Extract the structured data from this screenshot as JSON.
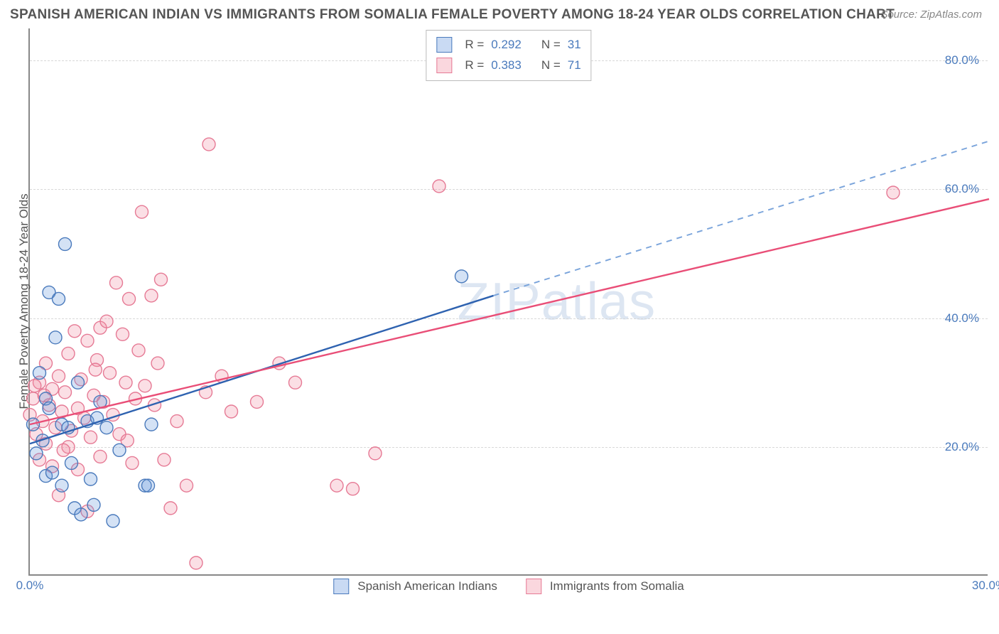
{
  "title": "SPANISH AMERICAN INDIAN VS IMMIGRANTS FROM SOMALIA FEMALE POVERTY AMONG 18-24 YEAR OLDS CORRELATION CHART",
  "source": "Source: ZipAtlas.com",
  "watermark": "ZIPatlas",
  "y_axis_title": "Female Poverty Among 18-24 Year Olds",
  "chart": {
    "type": "scatter",
    "xlim": [
      0,
      30
    ],
    "ylim": [
      0,
      85
    ],
    "x_ticks": [
      0,
      30
    ],
    "x_tick_labels": [
      "0.0%",
      "30.0%"
    ],
    "y_ticks": [
      20,
      40,
      60,
      80
    ],
    "y_tick_labels": [
      "20.0%",
      "40.0%",
      "60.0%",
      "80.0%"
    ],
    "grid_color": "#d8d8d8",
    "background_color": "#ffffff",
    "series": [
      {
        "name": "Spanish American Indians",
        "color_stroke": "#4a7abc",
        "color_fill": "rgba(100,150,220,0.28)",
        "marker_radius": 9,
        "R": "0.292",
        "N": "31",
        "trend": {
          "x1": 0,
          "y1": 20.5,
          "x2": 14.5,
          "y2": 43.5,
          "x2_dash": 30,
          "y2_dash": 67.5,
          "solid_color": "#2e62b0",
          "dash_color": "#7aa4db",
          "width": 2.4
        },
        "points": [
          [
            0.1,
            23.5
          ],
          [
            0.2,
            19.0
          ],
          [
            0.3,
            31.5
          ],
          [
            0.4,
            21.0
          ],
          [
            0.5,
            27.5
          ],
          [
            0.5,
            15.5
          ],
          [
            0.6,
            44.0
          ],
          [
            0.7,
            16.0
          ],
          [
            0.8,
            37.0
          ],
          [
            0.9,
            43.0
          ],
          [
            1.0,
            23.5
          ],
          [
            1.0,
            14.0
          ],
          [
            1.1,
            51.5
          ],
          [
            1.2,
            23.0
          ],
          [
            1.3,
            17.5
          ],
          [
            1.4,
            10.5
          ],
          [
            1.5,
            30.0
          ],
          [
            1.6,
            9.5
          ],
          [
            1.8,
            24.0
          ],
          [
            1.9,
            15.0
          ],
          [
            2.0,
            11.0
          ],
          [
            2.1,
            24.5
          ],
          [
            2.2,
            27.0
          ],
          [
            2.4,
            23.0
          ],
          [
            2.6,
            8.5
          ],
          [
            2.8,
            19.5
          ],
          [
            3.6,
            14.0
          ],
          [
            3.7,
            14.0
          ],
          [
            3.8,
            23.5
          ],
          [
            13.5,
            46.5
          ],
          [
            0.6,
            26.0
          ]
        ]
      },
      {
        "name": "Immigrants from Somalia",
        "color_stroke": "#e67a95",
        "color_fill": "rgba(240,140,160,0.28)",
        "marker_radius": 9,
        "R": "0.383",
        "N": "71",
        "trend": {
          "x1": 0,
          "y1": 23.5,
          "x2": 30,
          "y2": 58.5,
          "solid_color": "#e94e77",
          "width": 2.4
        },
        "points": [
          [
            0.0,
            25.0
          ],
          [
            0.1,
            27.5
          ],
          [
            0.2,
            22.0
          ],
          [
            0.3,
            30.0
          ],
          [
            0.3,
            18.0
          ],
          [
            0.4,
            24.0
          ],
          [
            0.5,
            33.0
          ],
          [
            0.5,
            20.5
          ],
          [
            0.6,
            26.5
          ],
          [
            0.7,
            29.0
          ],
          [
            0.7,
            17.0
          ],
          [
            0.8,
            23.0
          ],
          [
            0.9,
            31.0
          ],
          [
            0.9,
            12.5
          ],
          [
            1.0,
            25.5
          ],
          [
            1.1,
            28.5
          ],
          [
            1.2,
            34.5
          ],
          [
            1.2,
            20.0
          ],
          [
            1.3,
            22.5
          ],
          [
            1.4,
            38.0
          ],
          [
            1.5,
            26.0
          ],
          [
            1.5,
            16.5
          ],
          [
            1.6,
            30.5
          ],
          [
            1.7,
            24.5
          ],
          [
            1.8,
            36.5
          ],
          [
            1.8,
            10.0
          ],
          [
            1.9,
            21.5
          ],
          [
            2.0,
            28.0
          ],
          [
            2.1,
            33.5
          ],
          [
            2.2,
            38.5
          ],
          [
            2.2,
            18.5
          ],
          [
            2.3,
            27.0
          ],
          [
            2.4,
            39.5
          ],
          [
            2.5,
            31.5
          ],
          [
            2.6,
            25.0
          ],
          [
            2.7,
            45.5
          ],
          [
            2.8,
            22.0
          ],
          [
            2.9,
            37.5
          ],
          [
            3.0,
            30.0
          ],
          [
            3.1,
            43.0
          ],
          [
            3.2,
            17.5
          ],
          [
            3.3,
            27.5
          ],
          [
            3.4,
            35.0
          ],
          [
            3.5,
            56.5
          ],
          [
            3.6,
            29.5
          ],
          [
            3.8,
            43.5
          ],
          [
            3.9,
            26.5
          ],
          [
            4.0,
            33.0
          ],
          [
            4.1,
            46.0
          ],
          [
            4.2,
            18.0
          ],
          [
            4.4,
            10.5
          ],
          [
            4.6,
            24.0
          ],
          [
            4.9,
            14.0
          ],
          [
            5.2,
            2.0
          ],
          [
            5.5,
            28.5
          ],
          [
            5.6,
            67.0
          ],
          [
            6.0,
            31.0
          ],
          [
            6.3,
            25.5
          ],
          [
            7.1,
            27.0
          ],
          [
            7.8,
            33.0
          ],
          [
            8.3,
            30.0
          ],
          [
            9.6,
            14.0
          ],
          [
            10.1,
            13.5
          ],
          [
            10.8,
            19.0
          ],
          [
            12.8,
            60.5
          ],
          [
            27.0,
            59.5
          ],
          [
            0.15,
            29.5
          ],
          [
            0.45,
            28.0
          ],
          [
            2.05,
            32.0
          ],
          [
            3.05,
            21.0
          ],
          [
            1.05,
            19.5
          ]
        ]
      }
    ]
  },
  "legend_bottom": [
    {
      "swatch": "blue",
      "label": "Spanish American Indians"
    },
    {
      "swatch": "pink",
      "label": "Immigrants from Somalia"
    }
  ]
}
